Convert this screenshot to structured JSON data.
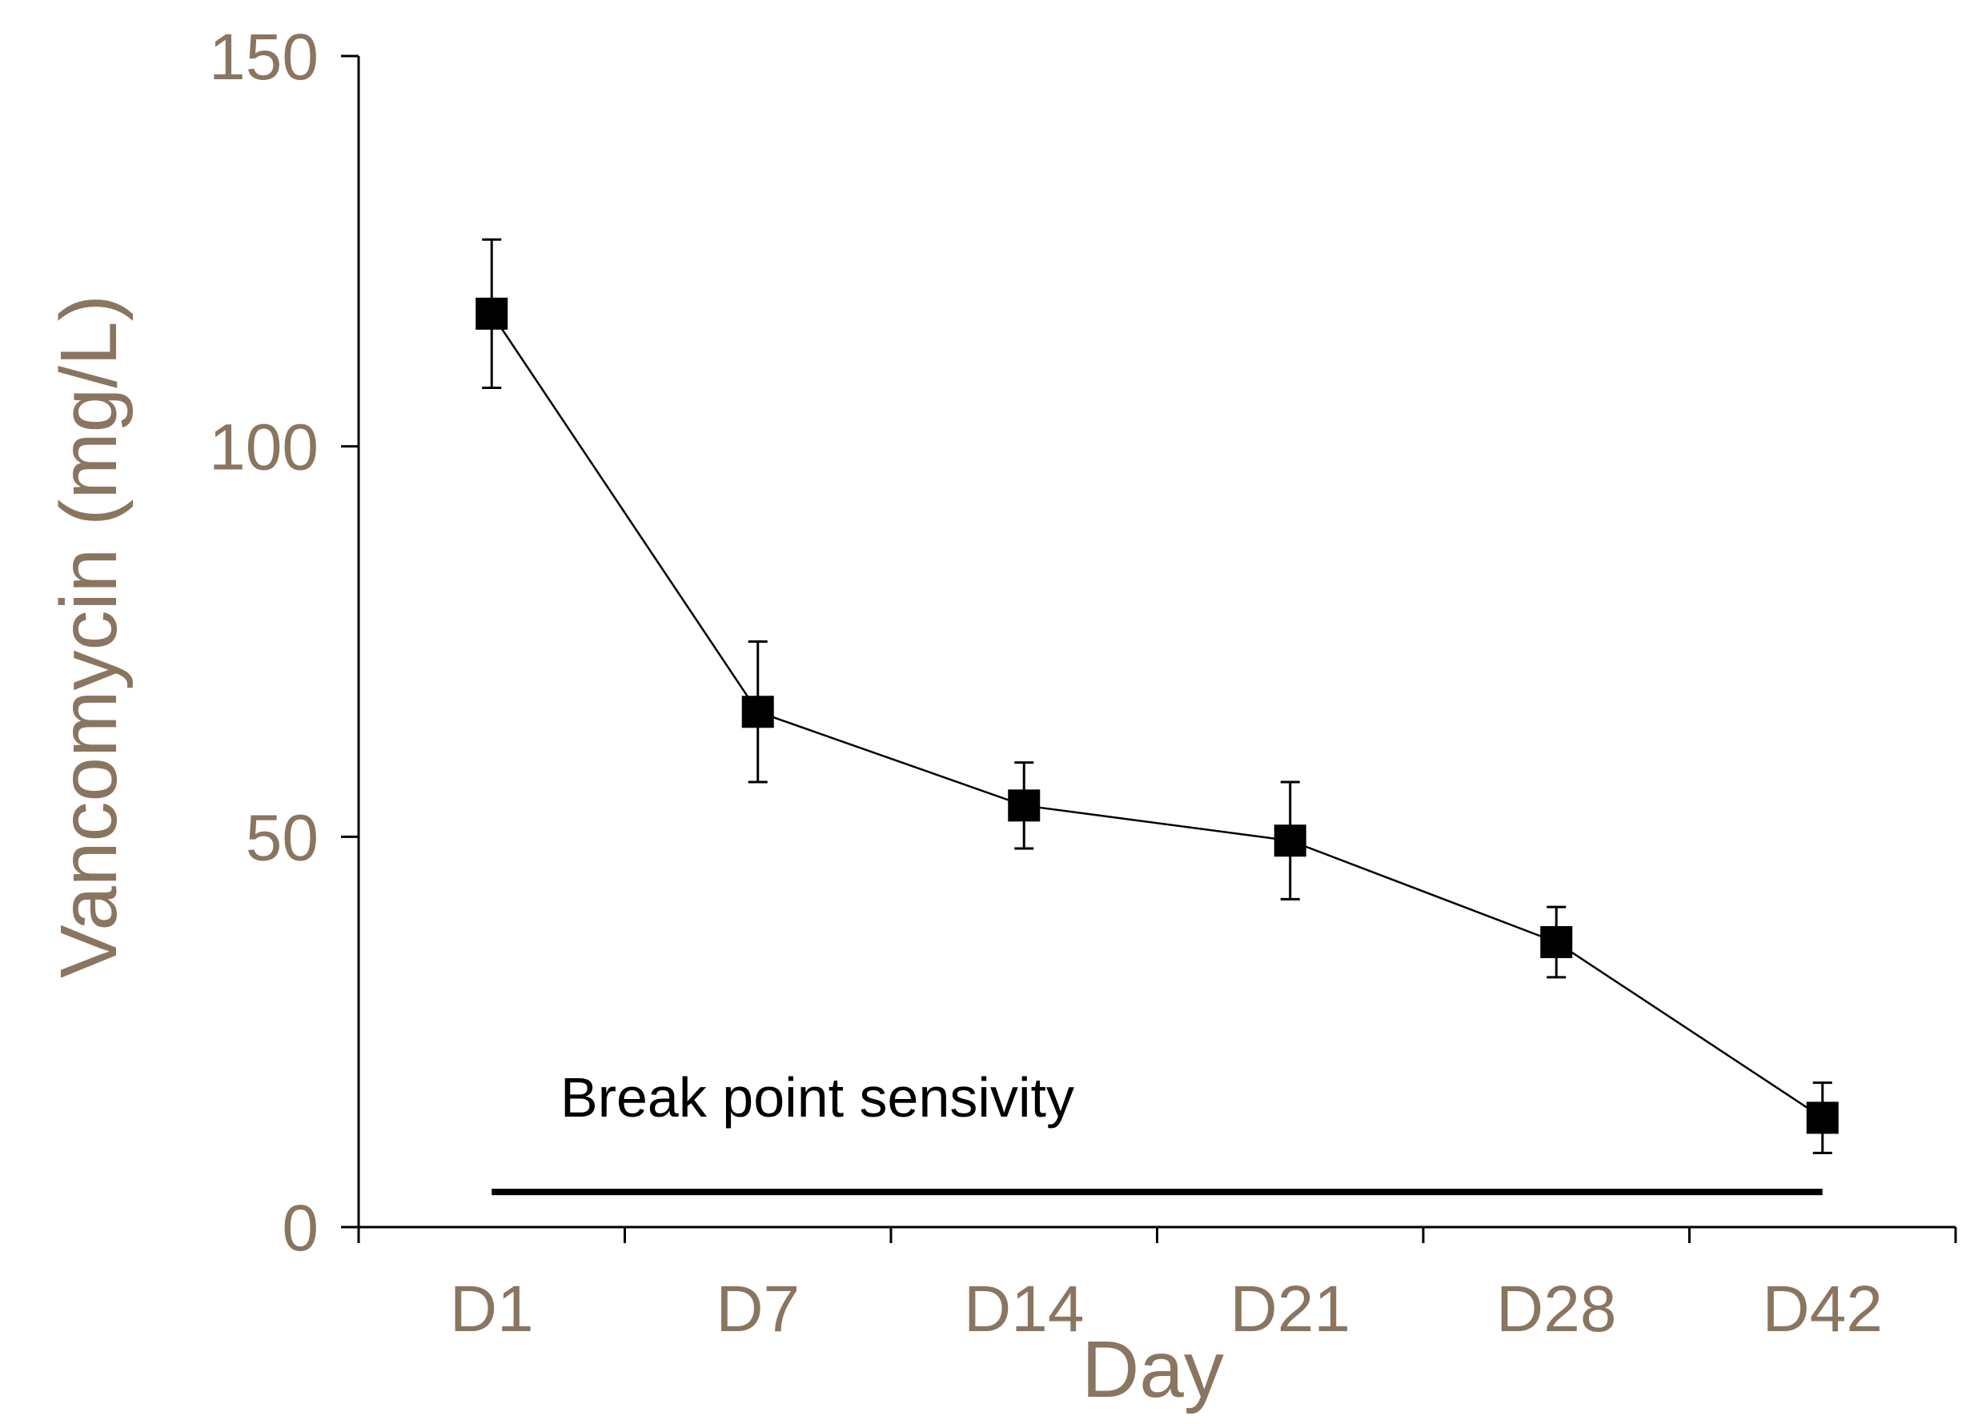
{
  "chart_data": {
    "type": "line",
    "xlabel": "Day",
    "ylabel": "Vancomycin (mg/L)",
    "categories": [
      "D1",
      "D7",
      "D14",
      "D21",
      "D28",
      "D42"
    ],
    "series": [
      {
        "values": [
          117,
          66,
          54,
          49.5,
          36.5,
          14
        ],
        "error": [
          9.5,
          9,
          5.5,
          7.5,
          4.5,
          4.5
        ]
      }
    ],
    "ylim": [
      0,
      150
    ],
    "yticks": [
      0,
      50,
      100,
      150
    ],
    "grid": false,
    "annotations": [
      {
        "text": "Break point sensivity",
        "y": 4.5,
        "x_from": "D1",
        "x_to": "D42"
      }
    ],
    "colors": {
      "axis_text": "#8a7560",
      "series": "#000000"
    }
  }
}
